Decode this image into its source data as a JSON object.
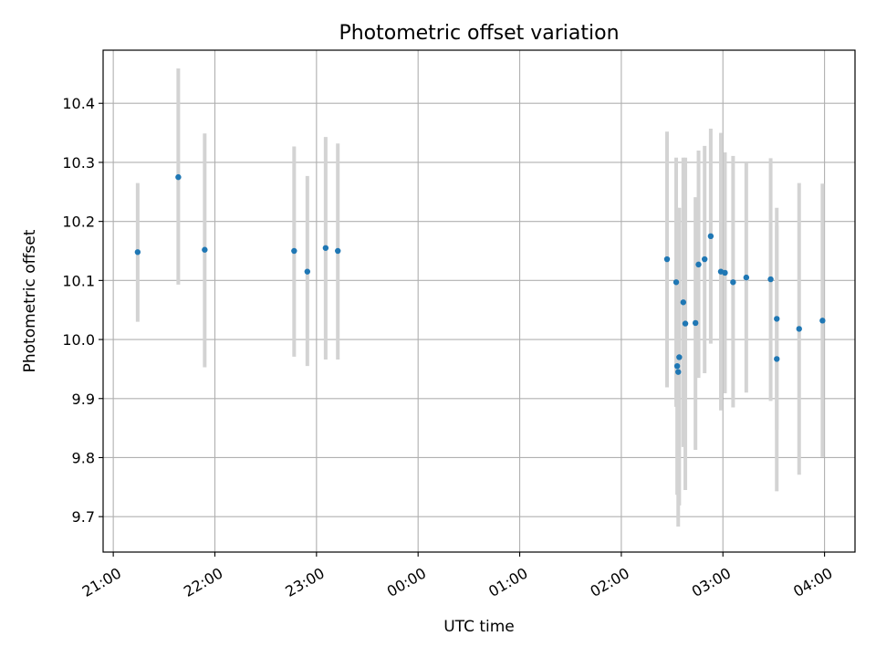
{
  "chart_data": {
    "type": "scatter",
    "title": "Photometric offset variation",
    "xlabel": "UTC time",
    "ylabel": "Photometric offset",
    "x_unit": "hours (UTC, continuing past midnight)",
    "xlim": [
      20.9,
      28.3
    ],
    "ylim": [
      9.64,
      10.49
    ],
    "grid": true,
    "x_ticks": [
      {
        "value": 21,
        "label": "21:00"
      },
      {
        "value": 22,
        "label": "22:00"
      },
      {
        "value": 23,
        "label": "23:00"
      },
      {
        "value": 24,
        "label": "00:00"
      },
      {
        "value": 25,
        "label": "01:00"
      },
      {
        "value": 26,
        "label": "02:00"
      },
      {
        "value": 27,
        "label": "03:00"
      },
      {
        "value": 28,
        "label": "04:00"
      }
    ],
    "y_ticks": [
      {
        "value": 9.7,
        "label": "9.7"
      },
      {
        "value": 9.8,
        "label": "9.8"
      },
      {
        "value": 9.9,
        "label": "9.9"
      },
      {
        "value": 10.0,
        "label": "10.0"
      },
      {
        "value": 10.1,
        "label": "10.1"
      },
      {
        "value": 10.2,
        "label": "10.2"
      },
      {
        "value": 10.3,
        "label": "10.3"
      },
      {
        "value": 10.4,
        "label": "10.4"
      }
    ],
    "colors": {
      "point": "#1f77b4",
      "error_bar": "#d3d3d3",
      "grid": "#b0b0b0"
    },
    "points": [
      {
        "x": 21.24,
        "y": 10.148,
        "ylo": 10.03,
        "yhi": 10.265
      },
      {
        "x": 21.64,
        "y": 10.275,
        "ylo": 10.093,
        "yhi": 10.459
      },
      {
        "x": 21.9,
        "y": 10.152,
        "ylo": 9.953,
        "yhi": 10.349
      },
      {
        "x": 22.78,
        "y": 10.15,
        "ylo": 9.971,
        "yhi": 10.327
      },
      {
        "x": 22.91,
        "y": 10.115,
        "ylo": 9.955,
        "yhi": 10.277
      },
      {
        "x": 23.09,
        "y": 10.155,
        "ylo": 9.966,
        "yhi": 10.343
      },
      {
        "x": 23.21,
        "y": 10.15,
        "ylo": 9.966,
        "yhi": 10.332
      },
      {
        "x": 26.45,
        "y": 10.136,
        "ylo": 9.919,
        "yhi": 10.352
      },
      {
        "x": 26.54,
        "y": 10.097,
        "ylo": 9.886,
        "yhi": 10.308
      },
      {
        "x": 26.55,
        "y": 9.955,
        "ylo": 9.737,
        "yhi": 10.223
      },
      {
        "x": 26.56,
        "y": 9.945,
        "ylo": 9.683,
        "yhi": 10.208
      },
      {
        "x": 26.57,
        "y": 9.97,
        "ylo": 9.719,
        "yhi": 10.223
      },
      {
        "x": 26.61,
        "y": 10.063,
        "ylo": 9.818,
        "yhi": 10.308
      },
      {
        "x": 26.63,
        "y": 10.027,
        "ylo": 9.745,
        "yhi": 10.308
      },
      {
        "x": 26.73,
        "y": 10.028,
        "ylo": 9.813,
        "yhi": 10.241
      },
      {
        "x": 26.76,
        "y": 10.127,
        "ylo": 9.935,
        "yhi": 10.32
      },
      {
        "x": 26.82,
        "y": 10.136,
        "ylo": 9.943,
        "yhi": 10.328
      },
      {
        "x": 26.88,
        "y": 10.175,
        "ylo": 9.993,
        "yhi": 10.357
      },
      {
        "x": 26.98,
        "y": 10.115,
        "ylo": 9.88,
        "yhi": 10.35
      },
      {
        "x": 27.02,
        "y": 10.113,
        "ylo": 9.909,
        "yhi": 10.317
      },
      {
        "x": 27.1,
        "y": 10.097,
        "ylo": 9.885,
        "yhi": 10.311
      },
      {
        "x": 27.23,
        "y": 10.105,
        "ylo": 9.91,
        "yhi": 10.3
      },
      {
        "x": 27.47,
        "y": 10.102,
        "ylo": 9.896,
        "yhi": 10.307
      },
      {
        "x": 27.53,
        "y": 10.035,
        "ylo": 9.847,
        "yhi": 10.193
      },
      {
        "x": 27.53,
        "y": 9.967,
        "ylo": 9.743,
        "yhi": 10.223
      },
      {
        "x": 27.75,
        "y": 10.018,
        "ylo": 9.771,
        "yhi": 10.265
      },
      {
        "x": 27.98,
        "y": 10.032,
        "ylo": 9.801,
        "yhi": 10.264
      }
    ]
  }
}
